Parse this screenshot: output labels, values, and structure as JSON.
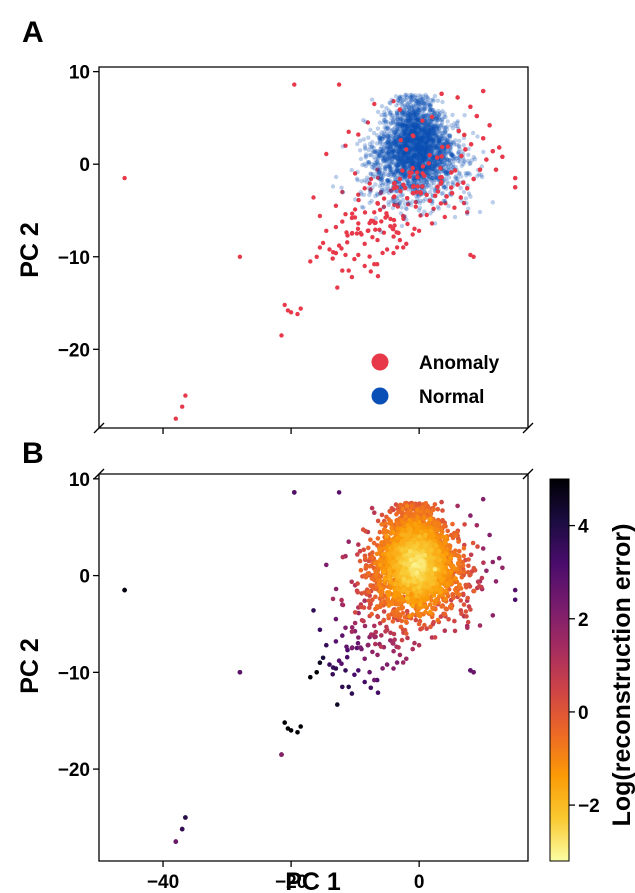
{
  "chart_data": [
    {
      "panel": "A",
      "type": "scatter",
      "title": "",
      "xlabel": "",
      "ylabel": "PC 2",
      "xlim": [
        -50,
        17
      ],
      "ylim": [
        -28.5,
        10.5
      ],
      "y_ticks": [
        10,
        0,
        -10,
        -20
      ],
      "y_tick_labels": [
        "10",
        "0",
        "−10",
        "−20"
      ],
      "x_ticks": [
        -40,
        -20,
        0
      ],
      "legend": {
        "placement": "bottom-right",
        "entries": [
          "Anomaly",
          "Normal"
        ]
      },
      "colors": {
        "Anomaly": "#e8394a",
        "Normal": "#0a4fb5"
      },
      "series": [
        {
          "name": "Anomaly",
          "points": [
            [
              -46,
              -1.5
            ],
            [
              -19.5,
              8.6
            ],
            [
              -28,
              -10
            ],
            [
              -36.5,
              -25
            ],
            [
              -37,
              -26.2
            ],
            [
              -38,
              -27.5
            ],
            [
              -21.5,
              -18.5
            ],
            [
              -21,
              -15.2
            ],
            [
              -20,
              -16
            ],
            [
              -19,
              -16.2
            ],
            [
              -18.5,
              -15.6
            ],
            [
              -20.5,
              -15.8
            ],
            [
              -17,
              -10.5
            ],
            [
              -16,
              -10
            ],
            [
              -15.5,
              -9
            ],
            [
              -15,
              -8.5
            ],
            [
              -14,
              -9.2
            ],
            [
              -13.5,
              -10.2
            ],
            [
              -13,
              -9.6
            ],
            [
              -12.5,
              -8.8
            ],
            [
              -12,
              -11.5
            ],
            [
              -11,
              -11.5
            ],
            [
              -11.5,
              -9.8
            ],
            [
              -10.5,
              -7.5
            ],
            [
              -14.5,
              -7.2
            ],
            [
              -13,
              -6.8
            ],
            [
              -12,
              -6.2
            ],
            [
              -11.5,
              -5.4
            ],
            [
              -10.5,
              -5.8
            ],
            [
              -10,
              -4.9
            ],
            [
              -9.5,
              -6.4
            ],
            [
              -9,
              -7.6
            ],
            [
              -8.5,
              -8.6
            ],
            [
              -8,
              -7.2
            ],
            [
              -7.5,
              -6.1
            ],
            [
              -7,
              -5.2
            ],
            [
              -6.5,
              -4.2
            ],
            [
              -6,
              -3.1
            ],
            [
              -5.5,
              -4.6
            ],
            [
              -5,
              -5.6
            ],
            [
              -4.5,
              -6.7
            ],
            [
              -4,
              -3.6
            ],
            [
              -3.5,
              -2.5
            ],
            [
              -3,
              -1.6
            ],
            [
              -9.5,
              -3.3
            ],
            [
              -8.5,
              -2.6
            ],
            [
              -7.5,
              -1.6
            ],
            [
              -6.5,
              -0.6
            ],
            [
              -10,
              -1
            ],
            [
              -11,
              3.5
            ],
            [
              -11.5,
              2
            ],
            [
              -8,
              4.5
            ],
            [
              -12,
              -3
            ],
            [
              -13,
              -4.5
            ],
            [
              -10.5,
              -12.2
            ],
            [
              -9.5,
              -9.8
            ],
            [
              -8.5,
              -11
            ],
            [
              -7,
              -10.8
            ],
            [
              -5,
              -9.2
            ],
            [
              -3,
              -8.2
            ],
            [
              -6.5,
              -8.2
            ],
            [
              -5.5,
              -7.4
            ],
            [
              -4,
              -9.6
            ],
            [
              -2,
              -8.6
            ],
            [
              -1,
              -7.6
            ],
            [
              0,
              -7.2
            ],
            [
              2,
              -6.4
            ],
            [
              4,
              -5.7
            ],
            [
              5.5,
              -4.7
            ],
            [
              6.5,
              -3.6
            ],
            [
              7.5,
              -2.6
            ],
            [
              8.5,
              -1.6
            ],
            [
              9.5,
              -0.6
            ],
            [
              10.5,
              0.5
            ],
            [
              11.5,
              1.4
            ],
            [
              12,
              -0.6
            ],
            [
              13,
              0.8
            ],
            [
              15,
              -2.5
            ],
            [
              15,
              -1.5
            ],
            [
              12.5,
              1.8
            ],
            [
              10,
              2.8
            ],
            [
              11,
              4.2
            ],
            [
              9,
              5.2
            ],
            [
              8,
              6.2
            ],
            [
              6,
              7.2
            ],
            [
              10,
              7.9
            ],
            [
              3.5,
              7.6
            ],
            [
              -7,
              6.5
            ],
            [
              -4,
              6.8
            ],
            [
              -3,
              5.9
            ],
            [
              -12.5,
              8.6
            ],
            [
              -14.5,
              1.1
            ],
            [
              -16.5,
              -3.6
            ],
            [
              -15.5,
              -5.6
            ],
            [
              -9.5,
              3.2
            ],
            [
              8,
              -9.8
            ],
            [
              8.5,
              -10
            ],
            [
              7.5,
              -5.2
            ],
            [
              7,
              -4.2
            ],
            [
              6,
              -2.2
            ],
            [
              5,
              -0.9
            ],
            [
              4.5,
              1.9
            ],
            [
              6.2,
              3.6
            ],
            [
              2,
              5.1
            ],
            [
              0.5,
              4.7
            ],
            [
              -1,
              3.1
            ],
            [
              -2,
              1.6
            ],
            [
              -1.5,
              -0.9
            ],
            [
              0.5,
              -2.4
            ],
            [
              2.5,
              -3.4
            ],
            [
              3.5,
              -1.4
            ],
            [
              1.5,
              0.1
            ],
            [
              -0.5,
              -4.1
            ],
            [
              -2.5,
              -5.6
            ]
          ],
          "generated_cluster": {
            "count": 150,
            "x_range": [
              -11,
              9
            ],
            "y_range": [
              -9,
              3
            ],
            "note": "additional anomaly points scattered around the lower-left edge of the normal cluster"
          }
        },
        {
          "name": "Normal",
          "points": [
            [
              -2,
              7.5
            ],
            [
              -1,
              7
            ],
            [
              0,
              6.5
            ],
            [
              1,
              6
            ],
            [
              -3,
              5
            ],
            [
              2,
              4
            ],
            [
              -5,
              2
            ],
            [
              5,
              1
            ],
            [
              -6,
              -1
            ],
            [
              7,
              -3
            ],
            [
              -4,
              -4
            ],
            [
              4,
              -4
            ],
            [
              0,
              -5
            ],
            [
              8,
              -3.5
            ],
            [
              -2,
              -6
            ]
          ],
          "generated_cluster": {
            "count": 2600,
            "center": [
              -0.5,
              1.5
            ],
            "spread": [
              3.2,
              2.6
            ],
            "note": "dense blue cloud of normal points with semi-transparent edges"
          }
        }
      ]
    },
    {
      "panel": "B",
      "type": "scatter",
      "title": "",
      "xlabel": "PC 1",
      "ylabel": "PC 2",
      "xlim": [
        -50,
        17
      ],
      "ylim": [
        -29.5,
        10.5
      ],
      "x_ticks": [
        -40,
        -20,
        0
      ],
      "x_tick_labels": [
        "−40",
        "−20",
        "0"
      ],
      "y_ticks": [
        10,
        0,
        -10,
        -20
      ],
      "y_tick_labels": [
        "10",
        "0",
        "−10",
        "−20"
      ],
      "color_encoding": "Log(reconstruction error)",
      "colorbar": {
        "title": "Log(reconstruction error)",
        "range": [
          -3.2,
          5
        ],
        "ticks": [
          4,
          2,
          0,
          -2
        ],
        "tick_labels": [
          "4",
          "2",
          "0",
          "−2"
        ],
        "colormap": [
          "#fcfea4",
          "#f9c932",
          "#fb9b06",
          "#ed6925",
          "#cf4446",
          "#a52c60",
          "#781c6d",
          "#4a0c6b",
          "#1b0c41",
          "#000004"
        ]
      },
      "series": [
        {
          "name": "",
          "points_same_as_panel": "A",
          "outlier_log_errors": [
            [
              -46,
              -1.5,
              4.8
            ],
            [
              -19.5,
              8.6,
              3.0
            ],
            [
              -28,
              -10,
              2.8
            ],
            [
              -36.5,
              -25,
              3.8
            ],
            [
              -37,
              -26.2,
              3.6
            ],
            [
              -38,
              -27.5,
              2.5
            ],
            [
              -21.5,
              -18.5,
              2.0
            ],
            [
              8,
              -9.8,
              3.4
            ],
            [
              8.5,
              -10,
              3.1
            ]
          ]
        }
      ]
    }
  ]
}
